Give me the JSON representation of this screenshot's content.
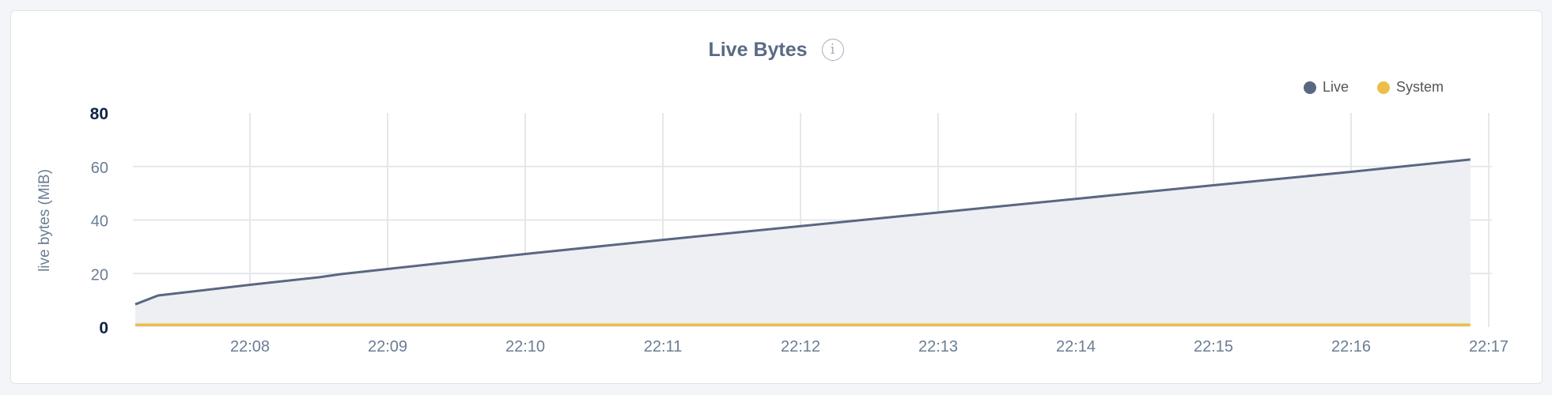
{
  "chart_data": {
    "type": "area",
    "title": "Live Bytes",
    "ylabel": "live bytes (MiB)",
    "xlabel": "",
    "ylim": [
      0,
      80
    ],
    "yticks": [
      "0",
      "20",
      "40",
      "60",
      "80"
    ],
    "xticks": [
      "22:08",
      "22:09",
      "22:10",
      "22:11",
      "22:12",
      "22:13",
      "22:14",
      "22:15",
      "22:16",
      "22:17"
    ],
    "grid": true,
    "legend_position": "top-right",
    "x": [
      "22:07:10",
      "22:07:20",
      "22:08:00",
      "22:08:30",
      "22:08:40",
      "22:09:00",
      "22:10:00",
      "22:11:00",
      "22:12:00",
      "22:13:00",
      "22:14:00",
      "22:15:00",
      "22:16:00",
      "22:16:52"
    ],
    "series": [
      {
        "name": "Live",
        "color": "#5a6782",
        "values": [
          8.5,
          11.8,
          15.8,
          18.6,
          19.8,
          21.7,
          27.3,
          32.6,
          37.7,
          42.8,
          47.9,
          53.0,
          58.0,
          62.6
        ]
      },
      {
        "name": "System",
        "color": "#ecbe4a",
        "values": [
          0.8,
          0.8,
          0.8,
          0.8,
          0.8,
          0.8,
          0.8,
          0.8,
          0.8,
          0.8,
          0.8,
          0.8,
          0.8,
          0.8
        ]
      }
    ]
  },
  "info_icon": "info-icon"
}
